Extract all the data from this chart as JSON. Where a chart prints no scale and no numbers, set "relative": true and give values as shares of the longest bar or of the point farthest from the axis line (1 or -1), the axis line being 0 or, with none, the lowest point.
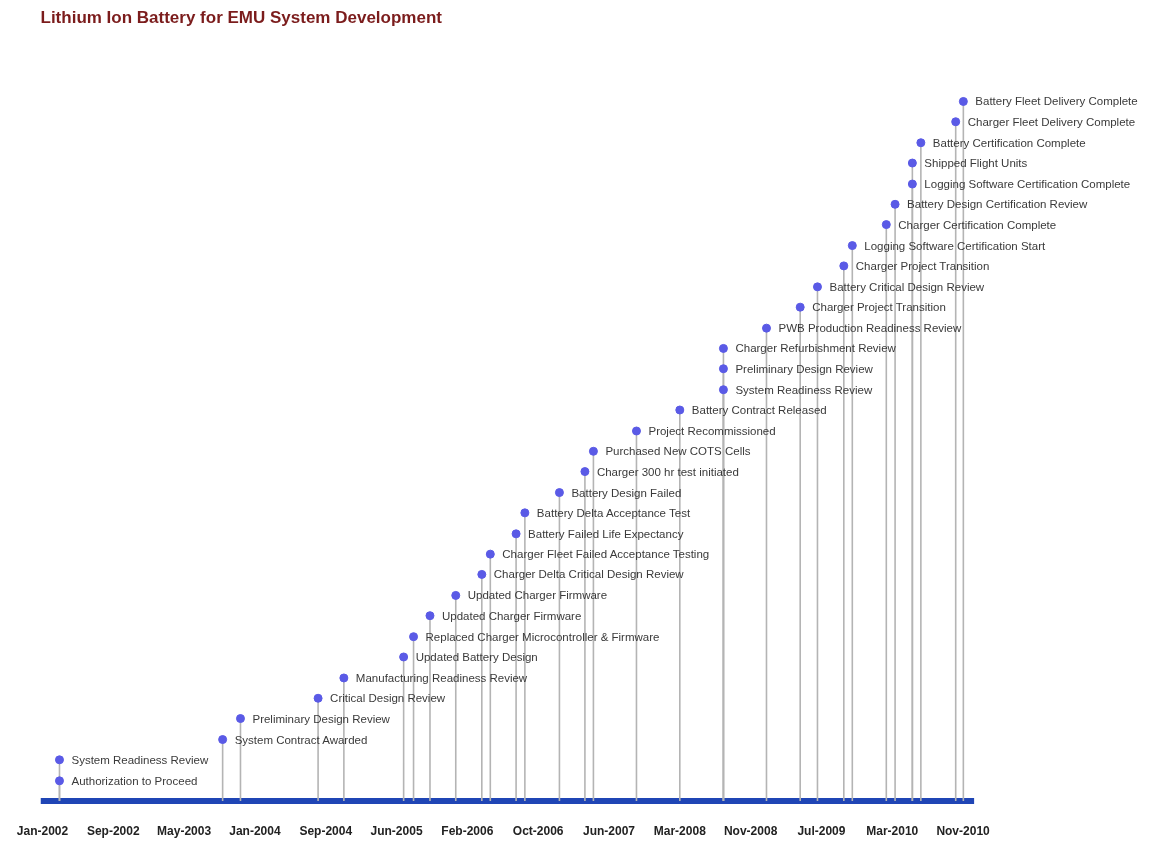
{
  "chart_data": {
    "type": "lollipop",
    "title": "Lithium Ion Battery for EMU System Development",
    "relative": true,
    "marker": "circle",
    "x": [
      "2002-03-04",
      "2002-03-04",
      "2003-10-01",
      "2003-12-03",
      "2004-09-02",
      "2004-12-02",
      "2005-07-01",
      "2005-08-05",
      "2005-10-02",
      "2006-01-01",
      "2006-04-03",
      "2006-05-03",
      "2006-08-02",
      "2006-09-02",
      "2007-01-02",
      "2007-04-02",
      "2007-05-02",
      "2007-10-01",
      "2008-03-02",
      "2008-08-03",
      "2008-08-03",
      "2008-08-03",
      "2009-01-02",
      "2009-05-01",
      "2009-07-01",
      "2009-10-02",
      "2009-11-01",
      "2010-03-01",
      "2010-04-01",
      "2010-06-01",
      "2010-06-01",
      "2010-07-01",
      "2010-11-01",
      "2010-11-28"
    ],
    "series": [
      {
        "color": "#5a5ae6",
        "values": [
          0.029,
          0.059,
          0.088,
          0.118,
          0.147,
          0.176,
          0.206,
          0.235,
          0.265,
          0.294,
          0.324,
          0.353,
          0.382,
          0.412,
          0.441,
          0.471,
          0.5,
          0.529,
          0.559,
          0.588,
          0.618,
          0.647,
          0.676,
          0.706,
          0.735,
          0.765,
          0.794,
          0.824,
          0.853,
          0.882,
          0.912,
          0.941,
          0.971,
          1
        ]
      }
    ],
    "xlim": [
      "2001-12-27",
      "2011-01-05"
    ],
    "xticks": [
      {
        "value": "2002-01-03",
        "label": "Jan-2002"
      },
      {
        "value": "2002-09-10",
        "label": "Sep-2002"
      },
      {
        "value": "2003-05-18",
        "label": "May-2003"
      },
      {
        "value": "2004-01-23",
        "label": "Jan-2004"
      },
      {
        "value": "2004-09-29",
        "label": "Sep-2004"
      },
      {
        "value": "2005-06-06",
        "label": "Jun-2005"
      },
      {
        "value": "2006-02-11",
        "label": "Feb-2006"
      },
      {
        "value": "2006-10-19",
        "label": "Oct-2006"
      },
      {
        "value": "2007-06-26",
        "label": "Jun-2007"
      },
      {
        "value": "2008-03-02",
        "label": "Mar-2008"
      },
      {
        "value": "2008-11-07",
        "label": "Nov-2008"
      },
      {
        "value": "2009-07-15",
        "label": "Jul-2009"
      },
      {
        "value": "2010-03-22",
        "label": "Mar-2010"
      },
      {
        "value": "2010-11-27",
        "label": "Nov-2010"
      }
    ],
    "annotations": [
      {
        "text": "Authorization to Proceed",
        "x": "2002-03-04",
        "y": 0.029
      },
      {
        "text": "System Readiness Review",
        "x": "2002-03-04",
        "y": 0.059
      },
      {
        "text": "System Contract Awarded",
        "x": "2003-10-01",
        "y": 0.088
      },
      {
        "text": "Preliminary Design Review",
        "x": "2003-12-03",
        "y": 0.118
      },
      {
        "text": "Critical Design Review",
        "x": "2004-09-02",
        "y": 0.147
      },
      {
        "text": "Manufacturing Readiness Review",
        "x": "2004-12-02",
        "y": 0.176
      },
      {
        "text": "Updated Battery Design",
        "x": "2005-07-01",
        "y": 0.206
      },
      {
        "text": "Replaced Charger Microcontroller & Firmware",
        "x": "2005-08-05",
        "y": 0.235
      },
      {
        "text": "Updated Charger Firmware",
        "x": "2005-10-02",
        "y": 0.265
      },
      {
        "text": "Updated Charger Firmware",
        "x": "2006-01-01",
        "y": 0.294
      },
      {
        "text": "Charger Delta Critical Design Review",
        "x": "2006-04-03",
        "y": 0.324
      },
      {
        "text": "Charger Fleet Failed Acceptance Testing",
        "x": "2006-05-03",
        "y": 0.353
      },
      {
        "text": "Battery Failed Life Expectancy",
        "x": "2006-08-02",
        "y": 0.382
      },
      {
        "text": "Battery Delta Acceptance Test",
        "x": "2006-09-02",
        "y": 0.412
      },
      {
        "text": "Battery Design Failed",
        "x": "2007-01-02",
        "y": 0.441
      },
      {
        "text": "Charger 300 hr test initiated",
        "x": "2007-04-02",
        "y": 0.471
      },
      {
        "text": "Purchased New COTS Cells",
        "x": "2007-05-02",
        "y": 0.5
      },
      {
        "text": "Project Recommissioned",
        "x": "2007-10-01",
        "y": 0.529
      },
      {
        "text": "Battery Contract Released",
        "x": "2008-03-02",
        "y": 0.559
      },
      {
        "text": "System Readiness Review",
        "x": "2008-08-03",
        "y": 0.588
      },
      {
        "text": "Preliminary Design Review",
        "x": "2008-08-03",
        "y": 0.618
      },
      {
        "text": "Charger Refurbishment Review",
        "x": "2008-08-03",
        "y": 0.647
      },
      {
        "text": "PWB Production Readiness Review",
        "x": "2009-01-02",
        "y": 0.676
      },
      {
        "text": "Charger Project Transition",
        "x": "2009-05-01",
        "y": 0.706
      },
      {
        "text": "Battery Critical Design Review",
        "x": "2009-07-01",
        "y": 0.735
      },
      {
        "text": "Charger Project Transition",
        "x": "2009-10-02",
        "y": 0.765
      },
      {
        "text": "Logging Software Certification Start",
        "x": "2009-11-01",
        "y": 0.794
      },
      {
        "text": "Charger Certification Complete",
        "x": "2010-03-01",
        "y": 0.824
      },
      {
        "text": "Battery Design Certification Review",
        "x": "2010-04-01",
        "y": 0.853
      },
      {
        "text": "Logging Software Certification Complete",
        "x": "2010-06-01",
        "y": 0.882
      },
      {
        "text": "Shipped Flight Units",
        "x": "2010-06-01",
        "y": 0.912
      },
      {
        "text": "Battery Certification Complete",
        "x": "2010-07-01",
        "y": 0.941
      },
      {
        "text": "Charger Fleet Delivery Complete",
        "x": "2010-11-01",
        "y": 0.971
      },
      {
        "text": "Battery Fleet Delivery Complete",
        "x": "2010-11-28",
        "y": 1
      }
    ]
  }
}
